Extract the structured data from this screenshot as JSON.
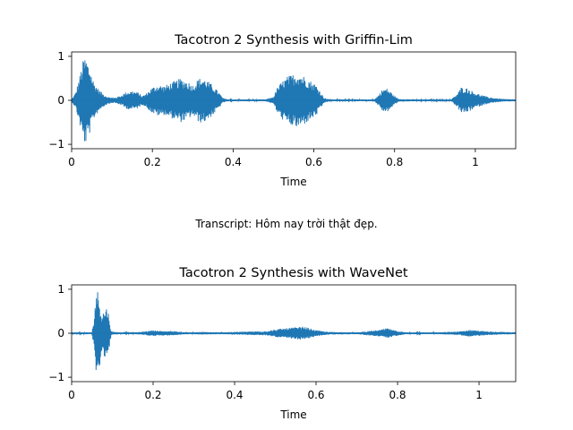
{
  "transcript": "Transcript: Hôm nay trời thật đẹp.",
  "line_color": "#1f77b4",
  "chart_data": [
    {
      "type": "line",
      "title": "Tacotron 2 Synthesis with Griffin-Lim",
      "xlabel": "Time",
      "ylabel": "",
      "xlim": [
        0,
        1.1
      ],
      "ylim": [
        -1.1,
        1.1
      ],
      "xticks": [
        0,
        0.2,
        0.4,
        0.6,
        0.8,
        1.0
      ],
      "xtick_labels": [
        "0",
        "0.2",
        "0.4",
        "0.6",
        "0.8",
        "1"
      ],
      "yticks": [
        1,
        0,
        -1
      ],
      "ytick_labels": [
        "1",
        "0",
        "−1"
      ],
      "grid": false,
      "legend": "none",
      "series": [
        {
          "envelope": [
            [
              0.0,
              0.02
            ],
            [
              0.01,
              0.18
            ],
            [
              0.02,
              0.55
            ],
            [
              0.03,
              0.97
            ],
            [
              0.035,
              1.0
            ],
            [
              0.045,
              0.75
            ],
            [
              0.055,
              0.42
            ],
            [
              0.065,
              0.28
            ],
            [
              0.075,
              0.17
            ],
            [
              0.09,
              0.08
            ],
            [
              0.105,
              0.06
            ],
            [
              0.12,
              0.1
            ],
            [
              0.135,
              0.19
            ],
            [
              0.15,
              0.22
            ],
            [
              0.165,
              0.18
            ],
            [
              0.175,
              0.1
            ],
            [
              0.185,
              0.16
            ],
            [
              0.2,
              0.3
            ],
            [
              0.215,
              0.36
            ],
            [
              0.23,
              0.33
            ],
            [
              0.25,
              0.42
            ],
            [
              0.27,
              0.5
            ],
            [
              0.285,
              0.45
            ],
            [
              0.3,
              0.35
            ],
            [
              0.315,
              0.5
            ],
            [
              0.325,
              0.52
            ],
            [
              0.335,
              0.46
            ],
            [
              0.35,
              0.34
            ],
            [
              0.365,
              0.18
            ],
            [
              0.375,
              0.05
            ],
            [
              0.39,
              0.02
            ],
            [
              0.44,
              0.02
            ],
            [
              0.48,
              0.02
            ],
            [
              0.5,
              0.08
            ],
            [
              0.51,
              0.3
            ],
            [
              0.52,
              0.42
            ],
            [
              0.535,
              0.55
            ],
            [
              0.55,
              0.6
            ],
            [
              0.56,
              0.64
            ],
            [
              0.575,
              0.56
            ],
            [
              0.59,
              0.46
            ],
            [
              0.605,
              0.36
            ],
            [
              0.615,
              0.22
            ],
            [
              0.625,
              0.06
            ],
            [
              0.64,
              0.02
            ],
            [
              0.7,
              0.02
            ],
            [
              0.75,
              0.02
            ],
            [
              0.76,
              0.12
            ],
            [
              0.77,
              0.25
            ],
            [
              0.78,
              0.28
            ],
            [
              0.79,
              0.2
            ],
            [
              0.8,
              0.1
            ],
            [
              0.81,
              0.03
            ],
            [
              0.86,
              0.02
            ],
            [
              0.9,
              0.02
            ],
            [
              0.94,
              0.02
            ],
            [
              0.955,
              0.15
            ],
            [
              0.965,
              0.3
            ],
            [
              0.98,
              0.28
            ],
            [
              0.995,
              0.2
            ],
            [
              1.01,
              0.14
            ],
            [
              1.03,
              0.08
            ],
            [
              1.05,
              0.05
            ],
            [
              1.07,
              0.03
            ],
            [
              1.1,
              0.02
            ]
          ]
        }
      ]
    },
    {
      "type": "line",
      "title": "Tacotron 2 Synthesis with WaveNet",
      "xlabel": "Time",
      "ylabel": "",
      "xlim": [
        0,
        1.09
      ],
      "ylim": [
        -1.1,
        1.1
      ],
      "xticks": [
        0,
        0.2,
        0.4,
        0.6,
        0.8,
        1.0
      ],
      "xtick_labels": [
        "0",
        "0.2",
        "0.4",
        "0.6",
        "0.8",
        "1"
      ],
      "yticks": [
        1,
        0,
        -1
      ],
      "ytick_labels": [
        "1",
        "0",
        "−1"
      ],
      "grid": false,
      "legend": "none",
      "series": [
        {
          "envelope": [
            [
              0.0,
              0.02
            ],
            [
              0.05,
              0.02
            ],
            [
              0.055,
              0.35
            ],
            [
              0.06,
              0.95
            ],
            [
              0.063,
              1.0
            ],
            [
              0.068,
              0.8
            ],
            [
              0.073,
              0.45
            ],
            [
              0.08,
              0.52
            ],
            [
              0.088,
              0.62
            ],
            [
              0.093,
              0.3
            ],
            [
              0.097,
              0.04
            ],
            [
              0.12,
              0.02
            ],
            [
              0.15,
              0.02
            ],
            [
              0.17,
              0.03
            ],
            [
              0.2,
              0.07
            ],
            [
              0.22,
              0.05
            ],
            [
              0.25,
              0.05
            ],
            [
              0.27,
              0.03
            ],
            [
              0.3,
              0.02
            ],
            [
              0.32,
              0.03
            ],
            [
              0.36,
              0.02
            ],
            [
              0.48,
              0.05
            ],
            [
              0.51,
              0.1
            ],
            [
              0.54,
              0.13
            ],
            [
              0.57,
              0.15
            ],
            [
              0.6,
              0.07
            ],
            [
              0.63,
              0.03
            ],
            [
              0.7,
              0.02
            ],
            [
              0.76,
              0.08
            ],
            [
              0.775,
              0.12
            ],
            [
              0.79,
              0.07
            ],
            [
              0.82,
              0.02
            ],
            [
              0.9,
              0.02
            ],
            [
              0.95,
              0.04
            ],
            [
              0.98,
              0.08
            ],
            [
              1.0,
              0.06
            ],
            [
              1.02,
              0.04
            ],
            [
              1.05,
              0.03
            ],
            [
              1.09,
              0.02
            ]
          ]
        }
      ]
    }
  ]
}
